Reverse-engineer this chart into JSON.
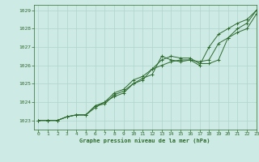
{
  "title": "Graphe pression niveau de la mer (hPa)",
  "xlim": [
    -0.5,
    23
  ],
  "ylim": [
    1022.5,
    1029.3
  ],
  "yticks": [
    1023,
    1024,
    1025,
    1026,
    1027,
    1028,
    1029
  ],
  "xticks": [
    0,
    1,
    2,
    3,
    4,
    5,
    6,
    7,
    8,
    9,
    10,
    11,
    12,
    13,
    14,
    15,
    16,
    17,
    18,
    19,
    20,
    21,
    22,
    23
  ],
  "background_color": "#ceeae4",
  "grid_color": "#aed4cc",
  "line_color": "#2d6a2d",
  "text_color": "#2d6a2d",
  "series1": [
    1023.0,
    1023.0,
    1023.0,
    1023.2,
    1023.3,
    1023.3,
    1023.8,
    1023.9,
    1024.4,
    1024.6,
    1025.0,
    1025.3,
    1025.5,
    1026.5,
    1026.3,
    1026.2,
    1026.3,
    1026.0,
    1027.0,
    1027.7,
    1028.0,
    1028.3,
    1028.5,
    1029.0
  ],
  "series2": [
    1023.0,
    1023.0,
    1023.0,
    1023.2,
    1023.3,
    1023.3,
    1023.7,
    1024.0,
    1024.3,
    1024.5,
    1025.0,
    1025.2,
    1025.8,
    1026.0,
    1026.2,
    1026.3,
    1026.3,
    1026.2,
    1026.3,
    1027.2,
    1027.5,
    1027.8,
    1028.0,
    1028.8
  ],
  "series3": [
    1023.0,
    1023.0,
    1023.0,
    1023.2,
    1023.3,
    1023.3,
    1023.8,
    1024.0,
    1024.5,
    1024.7,
    1025.2,
    1025.4,
    1025.8,
    1026.3,
    1026.5,
    1026.4,
    1026.4,
    1026.1,
    1026.1,
    1026.3,
    1027.5,
    1028.0,
    1028.3,
    1029.0
  ]
}
